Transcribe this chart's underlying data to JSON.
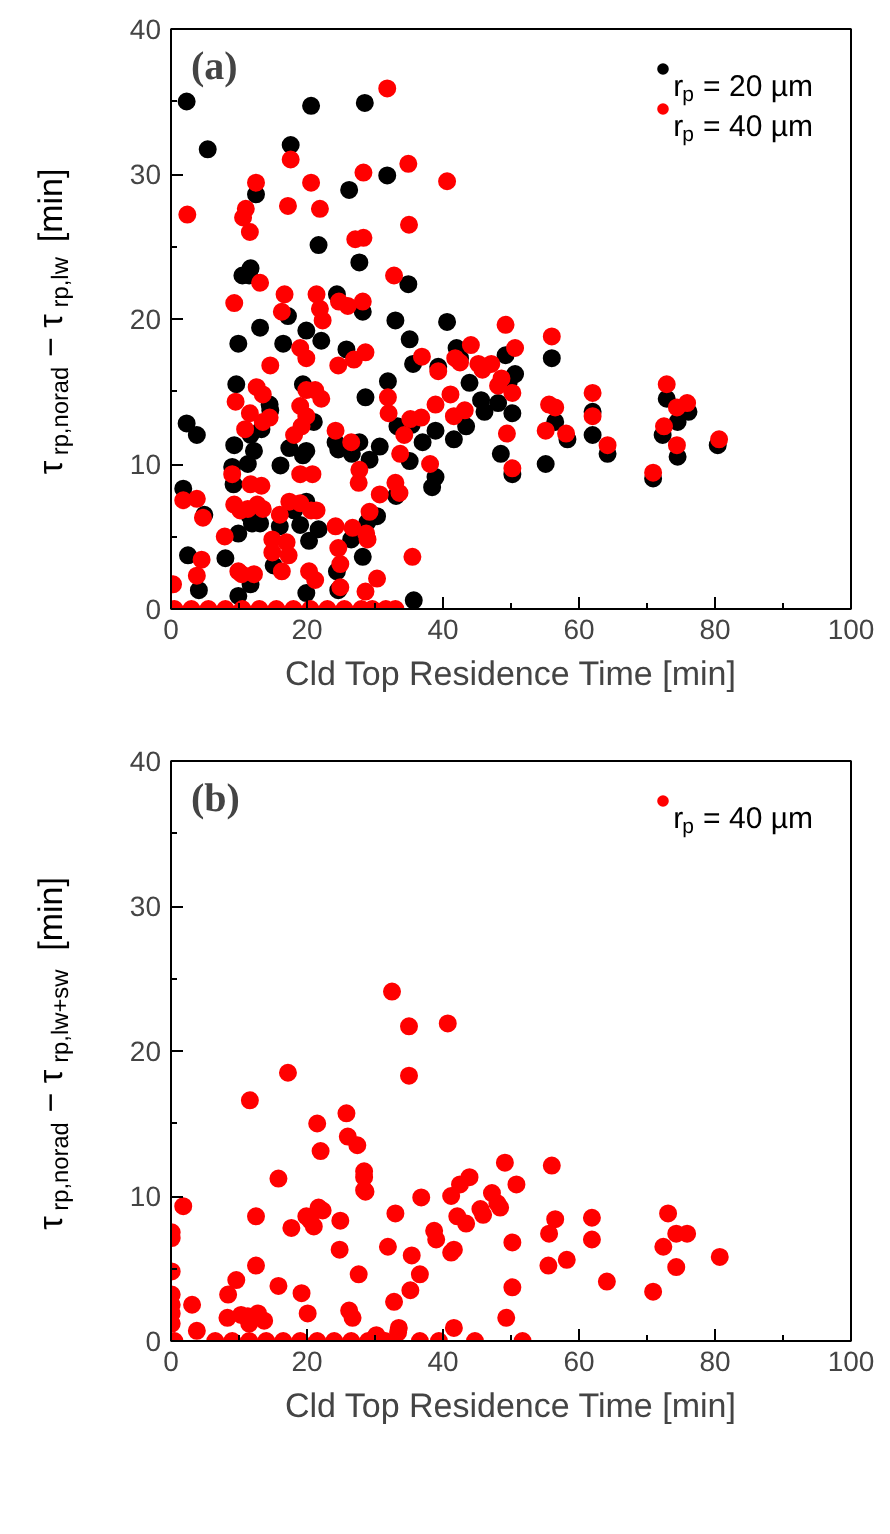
{
  "chart_data": [
    {
      "type": "scatter",
      "xlabel": "Cld Top Residence Time [min]",
      "ylabel": "τ$_{rp,norad}$ − τ$_{rp,lw}$ [min]",
      "annotations": [
        "(a)"
      ],
      "xlim": [
        0,
        100
      ],
      "ylim": [
        0,
        40
      ],
      "xticks": [
        0,
        20,
        40,
        60,
        80,
        100
      ],
      "yticks": [
        0,
        10,
        20,
        30,
        40
      ],
      "grid": false,
      "legend": "top right",
      "marker": "circle",
      "series": [
        {
          "name": "r$_{p}$ = 20 µm",
          "color": "#000000",
          "x": [
            2.3,
            5.4,
            20.6,
            28.5,
            31.8,
            17.6,
            12.5,
            26.2,
            21.7,
            11.5,
            10.5,
            11.7,
            27.7,
            34.9,
            24.4,
            13.1,
            33.0,
            40.6,
            9.9,
            17.2,
            16.5,
            19.9,
            22.1,
            25.8,
            28.2,
            35.1,
            35.6,
            42.0,
            42.5,
            39.3,
            43.9,
            49.7,
            50.6,
            49.2,
            56.0,
            45.6,
            48.1,
            50.2,
            46.1,
            43.4,
            41.6,
            38.9,
            35.4,
            33.3,
            31.9,
            28.6,
            9.6,
            14.5,
            14.6,
            13.3,
            11.7,
            9.3,
            12.2,
            11.3,
            9.0,
            9.2,
            16.1,
            17.4,
            19.9,
            21.0,
            19.4,
            19.4,
            24.2,
            24.6,
            26.6,
            27.7,
            29.2,
            30.7,
            35.1,
            37.0,
            48.5,
            50.2,
            55.1,
            56.5,
            58.3,
            62.0,
            62.0,
            64.2,
            70.9,
            72.3,
            72.9,
            74.5,
            74.5,
            76.1,
            80.4,
            38.4,
            38.9,
            33.1,
            30.3,
            28.9,
            28.2,
            26.5,
            24.4,
            24.6,
            20.3,
            21.7,
            19.0,
            19.9,
            18.1,
            16.0,
            15.1,
            13.1,
            11.9,
            11.6,
            9.9,
            8.0,
            2.5,
            1.8,
            3.8,
            2.3,
            4.9,
            35.7,
            19.9,
            9.9,
            4.1,
            11.7
          ],
          "values": [
            35.0,
            31.7,
            34.7,
            34.9,
            29.9,
            32.0,
            28.6,
            28.9,
            25.1,
            23.0,
            23.0,
            23.5,
            23.9,
            22.4,
            21.7,
            19.4,
            19.9,
            19.8,
            18.3,
            20.2,
            18.3,
            19.2,
            18.5,
            17.9,
            20.5,
            18.6,
            16.9,
            18.0,
            17.3,
            16.7,
            15.6,
            15.7,
            16.2,
            17.5,
            17.3,
            14.4,
            14.2,
            13.5,
            13.6,
            12.6,
            11.7,
            12.3,
            12.7,
            12.6,
            15.7,
            14.6,
            15.5,
            14.1,
            13.7,
            12.4,
            12.0,
            11.3,
            10.9,
            10.0,
            9.8,
            8.6,
            9.9,
            11.1,
            10.9,
            12.9,
            15.5,
            10.6,
            11.5,
            11.0,
            10.7,
            11.5,
            10.3,
            11.2,
            10.2,
            11.5,
            10.7,
            9.3,
            10.0,
            12.9,
            11.7,
            12.0,
            13.6,
            10.7,
            9.0,
            12.0,
            14.5,
            10.5,
            12.9,
            13.6,
            11.3,
            8.4,
            9.1,
            7.8,
            6.4,
            6.0,
            3.6,
            4.8,
            2.6,
            1.3,
            4.7,
            5.5,
            5.8,
            7.4,
            6.8,
            5.7,
            3.0,
            5.9,
            5.9,
            6.4,
            5.2,
            3.5,
            3.7,
            8.3,
            12.0,
            12.8,
            6.5,
            0.6,
            1.1,
            0.9,
            1.3,
            1.7
          ]
        },
        {
          "name": "r$_{p}$ = 40 µm",
          "color": "#ff0000",
          "x": [
            2.4,
            12.5,
            11.0,
            10.6,
            11.6,
            17.6,
            17.2,
            20.6,
            21.9,
            28.3,
            31.8,
            34.9,
            40.6,
            35.0,
            27.1,
            28.3,
            32.8,
            13.1,
            9.3,
            16.7,
            16.3,
            21.4,
            21.9,
            22.3,
            24.7,
            26.0,
            28.2,
            28.6,
            26.9,
            24.6,
            19.0,
            19.9,
            14.6,
            12.6,
            13.5,
            9.5,
            19.9,
            21.2,
            22.1,
            19.0,
            19.9,
            19.2,
            18.1,
            13.5,
            14.5,
            11.6,
            10.9,
            9.0,
            9.3,
            10.2,
            11.7,
            13.3,
            12.7,
            11.3,
            13.5,
            17.4,
            19.0,
            20.6,
            19.0,
            20.8,
            21.4,
            24.2,
            26.5,
            27.7,
            27.6,
            32.0,
            31.9,
            33.7,
            34.3,
            35.2,
            36.9,
            36.8,
            38.1,
            39.3,
            38.9,
            41.1,
            41.8,
            42.5,
            41.6,
            43.2,
            44.1,
            45.2,
            45.8,
            47.1,
            48.1,
            48.6,
            49.2,
            50.2,
            50.6,
            49.4,
            50.2,
            56.0,
            55.6,
            56.5,
            55.1,
            58.1,
            62.0,
            62.0,
            64.2,
            70.9,
            72.5,
            72.9,
            74.4,
            74.4,
            75.9,
            80.6,
            7.9,
            1.8,
            3.8,
            4.7,
            4.5,
            3.8,
            9.9,
            10.4,
            12.2,
            14.9,
            14.9,
            16.3,
            17.0,
            17.3,
            16.0,
            20.3,
            21.2,
            24.2,
            24.6,
            24.9,
            24.9,
            26.7,
            28.7,
            28.9,
            28.6,
            29.2,
            30.3,
            30.7,
            33.0,
            33.6,
            35.5,
            29.6,
            31.6,
            33.0,
            0.3,
            0.5,
            3,
            5.5,
            8,
            10.5,
            13,
            15.5,
            18,
            20.5,
            23,
            25.5,
            28
          ],
          "values": [
            27.2,
            29.4,
            27.6,
            27.0,
            26.0,
            31.0,
            27.8,
            29.4,
            27.6,
            30.1,
            35.9,
            30.7,
            29.5,
            26.5,
            25.5,
            25.6,
            23.0,
            22.5,
            21.1,
            21.7,
            20.5,
            21.7,
            20.7,
            19.9,
            21.2,
            20.9,
            21.2,
            17.7,
            17.2,
            16.8,
            18.0,
            17.3,
            16.8,
            15.3,
            14.8,
            14.3,
            15.1,
            15.1,
            14.5,
            14.0,
            13.3,
            12.6,
            12.0,
            12.9,
            13.2,
            13.5,
            12.4,
            9.3,
            7.2,
            6.8,
            8.6,
            8.5,
            7.2,
            6.9,
            6.9,
            7.4,
            7.3,
            6.8,
            9.3,
            9.3,
            6.8,
            12.3,
            11.5,
            9.6,
            8.7,
            13.5,
            14.6,
            10.7,
            12.0,
            13.1,
            17.4,
            13.2,
            10.0,
            16.4,
            14.1,
            14.8,
            17.3,
            17.0,
            13.3,
            13.7,
            18.2,
            16.9,
            16.5,
            16.9,
            15.4,
            15.9,
            19.6,
            14.9,
            18.0,
            12.1,
            9.7,
            18.8,
            14.1,
            13.9,
            12.3,
            12.1,
            14.9,
            13.3,
            11.3,
            9.4,
            12.6,
            15.5,
            13.9,
            11.3,
            14.2,
            11.7,
            5.0,
            7.5,
            7.6,
            6.3,
            3.4,
            2.3,
            2.6,
            2.4,
            2.4,
            3.9,
            4.8,
            2.6,
            4.6,
            3.7,
            6.5,
            2.6,
            2.0,
            5.7,
            4.2,
            3.1,
            1.5,
            5.6,
            5.2,
            4.8,
            1.2,
            6.7,
            2.1,
            7.9,
            8.7,
            8.0,
            3.6,
            0,
            0,
            0,
            1.7,
            0,
            0,
            0,
            0,
            0,
            0,
            0,
            0,
            0,
            0,
            0,
            0
          ]
        }
      ]
    },
    {
      "type": "scatter",
      "xlabel": "Cld Top Residence Time [min]",
      "ylabel": "τ$_{rp,norad}$ − τ$_{rp,lw+sw}$ [min]",
      "annotations": [
        "(b)"
      ],
      "xlim": [
        0,
        100
      ],
      "ylim": [
        0,
        40
      ],
      "xticks": [
        0,
        20,
        40,
        60,
        80,
        100
      ],
      "yticks": [
        0,
        10,
        20,
        30,
        40
      ],
      "grid": false,
      "legend": "top right",
      "marker": "circle",
      "series": [
        {
          "name": "r$_{p}$ = 40 µm",
          "color": "#ff0000",
          "x": [
            32.5,
            35.0,
            40.7,
            35.0,
            17.2,
            11.6,
            25.8,
            21.5,
            26.0,
            27.4,
            22.0,
            28.4,
            28.4,
            28.4,
            28.6,
            15.8,
            1.8,
            12.5,
            19.9,
            20.5,
            21.0,
            21.7,
            22.3,
            24.9,
            17.7,
            24.8,
            0.1,
            0.1,
            0.1,
            0.1,
            0.1,
            0.1,
            0.1,
            12.5,
            15.8,
            9.6,
            8.4,
            3.1,
            19.2,
            20.1,
            8.3,
            10.3,
            11.3,
            11.5,
            12.8,
            13.7,
            26.2,
            26.7,
            27.6,
            33.0,
            31.9,
            32.8,
            35.4,
            36.6,
            35.2,
            36.8,
            33.5,
            33.4,
            30.2,
            3.8,
            38.7,
            39.0,
            41.2,
            42.5,
            43.9,
            42.1,
            43.4,
            41.2,
            41.6,
            41.6,
            36.6,
            39.4,
            44.7,
            51.7,
            47.2,
            45.5,
            45.9,
            48.0,
            48.4,
            49.1,
            50.8,
            50.2,
            50.2,
            49.3,
            56.0,
            56.5,
            55.6,
            55.5,
            58.2,
            61.9,
            61.9,
            64.1,
            70.9,
            72.4,
            73.1,
            74.3,
            75.9,
            74.3,
            80.7,
            0.5,
            6.5,
            9,
            11.5,
            14,
            16.5,
            19,
            21.5,
            24,
            26.5,
            29,
            31.5
          ],
          "values": [
            24.1,
            21.7,
            21.9,
            18.3,
            18.5,
            16.6,
            15.7,
            15.0,
            14.1,
            13.5,
            13.1,
            11.7,
            11.3,
            10.4,
            10.3,
            11.2,
            9.3,
            8.6,
            8.6,
            8.3,
            7.9,
            9.2,
            9.0,
            8.3,
            7.8,
            6.3,
            7.5,
            7.1,
            4.8,
            3.2,
            2.5,
            1.9,
            1.2,
            5.2,
            3.8,
            4.2,
            3.2,
            2.5,
            3.3,
            1.9,
            1.6,
            1.8,
            1.7,
            1.2,
            1.9,
            1.4,
            2.1,
            1.6,
            4.6,
            8.8,
            6.5,
            2.7,
            5.9,
            4.6,
            3.5,
            9.9,
            0.9,
            0.6,
            0.4,
            0.7,
            7.6,
            7.0,
            10.0,
            10.8,
            11.3,
            8.6,
            8.1,
            6.1,
            6.3,
            0.9,
            0,
            0,
            0,
            0,
            10.2,
            9.1,
            8.7,
            9.5,
            9.2,
            12.3,
            10.8,
            6.8,
            3.7,
            1.6,
            12.1,
            8.4,
            7.4,
            5.2,
            5.6,
            8.5,
            7.0,
            4.1,
            3.4,
            6.5,
            8.8,
            7.4,
            7.4,
            5.1,
            5.8,
            0,
            0,
            0,
            0,
            0,
            0,
            0,
            0,
            0,
            0,
            0,
            0
          ]
        }
      ]
    }
  ]
}
